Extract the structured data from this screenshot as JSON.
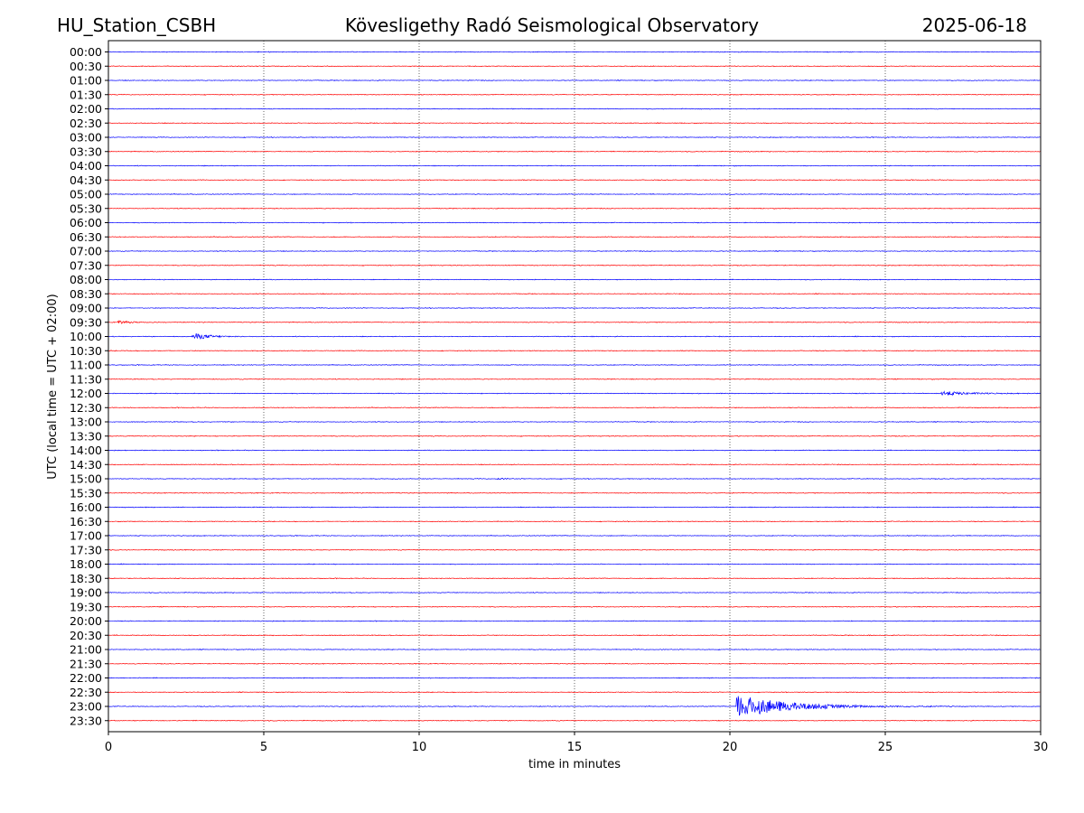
{
  "header": {
    "station": "HU_Station_CSBH",
    "observatory": "Kövesligethy Radó Seismological Observatory",
    "date": "2025-06-18"
  },
  "chart_data": {
    "type": "line",
    "title": "Kövesligethy Radó Seismological Observatory",
    "xlabel": "time in minutes",
    "ylabel": "UTC (local time = UTC + 02:00)",
    "xlim": [
      0,
      30
    ],
    "xticks": [
      0,
      5,
      10,
      15,
      20,
      25,
      30
    ],
    "grid": "vertical dotted at x ticks",
    "row_colors": [
      "#0000ff",
      "#ff0000"
    ],
    "rows": [
      "00:00",
      "00:30",
      "01:00",
      "01:30",
      "02:00",
      "02:30",
      "03:00",
      "03:30",
      "04:00",
      "04:30",
      "05:00",
      "05:30",
      "06:00",
      "06:30",
      "07:00",
      "07:30",
      "08:00",
      "08:30",
      "09:00",
      "09:30",
      "10:00",
      "10:30",
      "11:00",
      "11:30",
      "12:00",
      "12:30",
      "13:00",
      "13:30",
      "14:00",
      "14:30",
      "15:00",
      "15:30",
      "16:00",
      "16:30",
      "17:00",
      "17:30",
      "18:00",
      "18:30",
      "19:00",
      "19:30",
      "20:00",
      "20:30",
      "21:00",
      "21:30",
      "22:00",
      "22:30",
      "23:00",
      "23:30"
    ],
    "events": [
      {
        "row": "09:30",
        "start_min": 0.3,
        "peak_amp": 0.25,
        "duration_min": 1.5
      },
      {
        "row": "10:00",
        "start_min": 2.7,
        "peak_amp": 0.65,
        "duration_min": 1.8
      },
      {
        "row": "12:00",
        "start_min": 26.8,
        "peak_amp": 0.45,
        "duration_min": 2.6
      },
      {
        "row": "15:00",
        "start_min": 12.5,
        "peak_amp": 0.15,
        "duration_min": 0.8
      },
      {
        "row": "23:00",
        "start_min": 20.2,
        "peak_amp": 2.2,
        "duration_min": 5.5
      }
    ]
  }
}
